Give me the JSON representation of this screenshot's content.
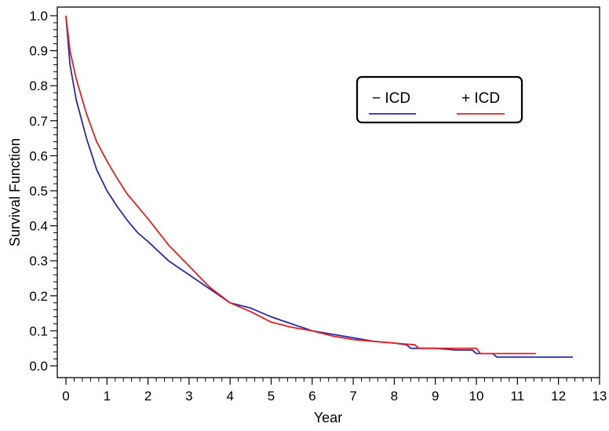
{
  "chart_data": {
    "type": "line",
    "title": "",
    "xlabel": "Year",
    "ylabel": "Survival Function",
    "xlim": [
      0,
      13
    ],
    "ylim": [
      0,
      1.0
    ],
    "x_ticks": [
      0,
      1,
      2,
      3,
      4,
      5,
      6,
      7,
      8,
      9,
      10,
      11,
      12,
      13
    ],
    "x_minor_ticks_per_major": 5,
    "y_ticks": [
      "0.0",
      "0.1",
      "0.2",
      "0.3",
      "0.4",
      "0.5",
      "0.6",
      "0.7",
      "0.8",
      "0.9",
      "1.0"
    ],
    "y_minor_ticks_per_major": 5,
    "grid": false,
    "legend_placement": "top-right",
    "series": [
      {
        "name": "− ICD",
        "color": "#2a2ab0",
        "points": [
          [
            0,
            1.0
          ],
          [
            0.1,
            0.86
          ],
          [
            0.25,
            0.76
          ],
          [
            0.5,
            0.65
          ],
          [
            0.75,
            0.56
          ],
          [
            1.0,
            0.5
          ],
          [
            1.25,
            0.455
          ],
          [
            1.5,
            0.415
          ],
          [
            1.75,
            0.38
          ],
          [
            2.0,
            0.355
          ],
          [
            2.5,
            0.3
          ],
          [
            3.0,
            0.26
          ],
          [
            3.5,
            0.22
          ],
          [
            4.0,
            0.18
          ],
          [
            4.5,
            0.165
          ],
          [
            5.0,
            0.14
          ],
          [
            5.5,
            0.12
          ],
          [
            6.0,
            0.1
          ],
          [
            6.5,
            0.09
          ],
          [
            7.0,
            0.08
          ],
          [
            7.5,
            0.07
          ],
          [
            8.0,
            0.065
          ],
          [
            8.3,
            0.06
          ],
          [
            8.4,
            0.05
          ],
          [
            9.0,
            0.05
          ],
          [
            9.5,
            0.045
          ],
          [
            9.9,
            0.045
          ],
          [
            10.0,
            0.035
          ],
          [
            10.4,
            0.035
          ],
          [
            10.5,
            0.025
          ],
          [
            11.5,
            0.025
          ],
          [
            12.35,
            0.025
          ]
        ]
      },
      {
        "name": "+ ICD",
        "color": "#e82020",
        "points": [
          [
            0,
            1.0
          ],
          [
            0.1,
            0.9
          ],
          [
            0.25,
            0.82
          ],
          [
            0.5,
            0.72
          ],
          [
            0.75,
            0.64
          ],
          [
            1.0,
            0.585
          ],
          [
            1.25,
            0.535
          ],
          [
            1.5,
            0.49
          ],
          [
            1.75,
            0.455
          ],
          [
            2.0,
            0.42
          ],
          [
            2.5,
            0.345
          ],
          [
            3.0,
            0.285
          ],
          [
            3.5,
            0.225
          ],
          [
            4.0,
            0.18
          ],
          [
            4.5,
            0.155
          ],
          [
            5.0,
            0.125
          ],
          [
            5.5,
            0.11
          ],
          [
            6.0,
            0.1
          ],
          [
            6.5,
            0.085
          ],
          [
            7.0,
            0.075
          ],
          [
            7.5,
            0.07
          ],
          [
            8.0,
            0.065
          ],
          [
            8.5,
            0.06
          ],
          [
            8.6,
            0.05
          ],
          [
            9.0,
            0.05
          ],
          [
            9.5,
            0.05
          ],
          [
            10.0,
            0.05
          ],
          [
            10.1,
            0.035
          ],
          [
            10.5,
            0.035
          ],
          [
            11.0,
            0.035
          ],
          [
            11.45,
            0.035
          ]
        ]
      }
    ]
  }
}
